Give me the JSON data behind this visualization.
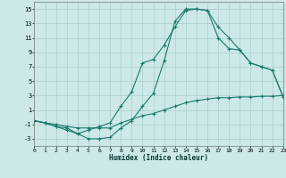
{
  "xlabel": "Humidex (Indice chaleur)",
  "bg_color": "#cce8e8",
  "grid_color": "#aacfcf",
  "line_color": "#1a7a6e",
  "x_ticks": [
    0,
    1,
    2,
    3,
    4,
    5,
    6,
    7,
    8,
    9,
    10,
    11,
    12,
    13,
    14,
    15,
    16,
    17,
    18,
    19,
    20,
    21,
    22,
    23
  ],
  "y_ticks": [
    -3,
    -1,
    1,
    3,
    5,
    7,
    9,
    11,
    13,
    15
  ],
  "xlim": [
    0,
    23
  ],
  "ylim": [
    -4,
    16
  ],
  "series1_x": [
    0,
    1,
    2,
    3,
    4,
    5,
    6,
    7,
    8,
    9,
    10,
    11,
    12,
    13,
    14,
    15,
    16,
    17,
    18,
    19,
    20,
    21,
    22,
    23
  ],
  "series1_y": [
    -0.5,
    -0.8,
    -1.3,
    -1.5,
    -2.3,
    -3.0,
    -3.0,
    -2.8,
    -1.5,
    -0.5,
    1.5,
    3.3,
    7.8,
    13.3,
    15.0,
    15.0,
    14.8,
    12.5,
    11.0,
    9.3,
    7.5,
    7.0,
    6.5,
    2.8
  ],
  "series2_x": [
    0,
    1,
    2,
    3,
    4,
    5,
    6,
    7,
    8,
    9,
    10,
    11,
    12,
    13,
    14,
    15,
    16,
    17,
    18,
    19,
    20,
    21,
    22,
    23
  ],
  "series2_y": [
    -0.5,
    -0.8,
    -1.3,
    -1.8,
    -2.3,
    -1.8,
    -1.3,
    -0.8,
    1.5,
    3.5,
    7.5,
    8.0,
    10.0,
    12.5,
    14.8,
    15.0,
    14.8,
    11.0,
    9.5,
    9.3,
    7.5,
    7.0,
    6.5,
    2.8
  ],
  "series3_x": [
    0,
    1,
    2,
    3,
    4,
    5,
    6,
    7,
    8,
    9,
    10,
    11,
    12,
    13,
    14,
    15,
    16,
    17,
    18,
    19,
    20,
    21,
    22,
    23
  ],
  "series3_y": [
    -0.5,
    -0.8,
    -1.0,
    -1.3,
    -1.5,
    -1.5,
    -1.5,
    -1.5,
    -0.8,
    -0.3,
    0.2,
    0.5,
    1.0,
    1.5,
    2.0,
    2.3,
    2.5,
    2.7,
    2.7,
    2.8,
    2.8,
    2.9,
    2.9,
    3.0
  ]
}
